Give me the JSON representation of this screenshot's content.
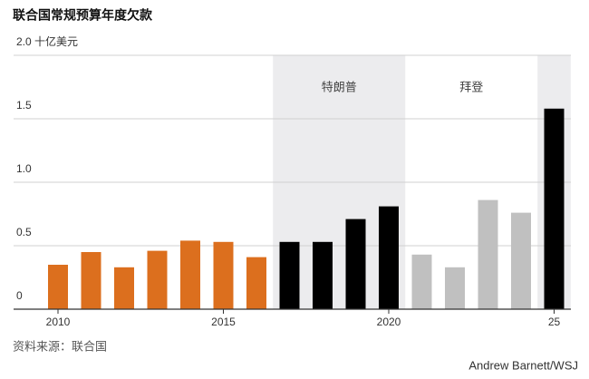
{
  "chart_data": {
    "type": "bar",
    "title": "联合国常规预算年度欠款",
    "categories": [
      "2010",
      null,
      null,
      null,
      null,
      "2015",
      null,
      null,
      null,
      null,
      "2020",
      null,
      null,
      null,
      null,
      "25"
    ],
    "values": [
      0.35,
      0.45,
      0.33,
      0.46,
      0.54,
      0.53,
      0.41,
      0.53,
      0.53,
      0.71,
      0.81,
      0.43,
      0.33,
      0.86,
      0.76,
      1.58
    ],
    "colors": [
      "#dc6f1e",
      "#dc6f1e",
      "#dc6f1e",
      "#dc6f1e",
      "#dc6f1e",
      "#dc6f1e",
      "#dc6f1e",
      "#000000",
      "#000000",
      "#000000",
      "#000000",
      "#c0c0c0",
      "#c0c0c0",
      "#c0c0c0",
      "#c0c0c0",
      "#000000"
    ],
    "eras": [
      {
        "name": "特朗普",
        "bar_range": [
          7,
          10
        ],
        "shaded": true
      },
      {
        "name": "拜登",
        "bar_range": [
          11,
          14
        ],
        "shaded": false
      },
      {
        "bar_range": [
          15,
          15
        ],
        "shaded": true
      }
    ],
    "shade_color": "#ececee",
    "ylim": [
      0,
      2
    ],
    "yticks": [
      0,
      0.5,
      {
        "value": 1,
        "label": "1.0"
      },
      1.5,
      {
        "value": 2,
        "label": "2.0 十亿美元"
      }
    ],
    "grid": true,
    "source": "资料来源：联合国",
    "credit": "Andrew Barnett/WSJ"
  }
}
